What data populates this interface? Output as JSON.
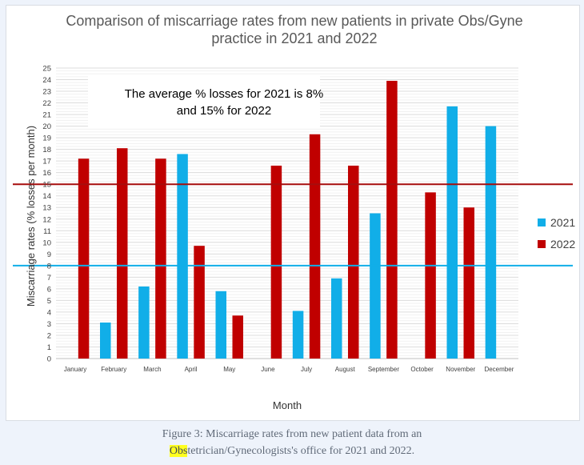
{
  "chart_data": {
    "type": "bar",
    "title": "Comparison of miscarriage rates from new patients in private Obs/Gyne practice in 2021 and 2022",
    "title_lines": [
      "Comparison of miscarriage rates from new patients in private Obs/Gyne",
      "practice in 2021 and 2022"
    ],
    "xlabel": "Month",
    "ylabel": "Miscarriage rates (% losses per month)",
    "ylim": [
      0,
      25
    ],
    "y_ticks": [
      0,
      1,
      2,
      3,
      4,
      5,
      6,
      7,
      8,
      9,
      10,
      11,
      12,
      13,
      14,
      15,
      16,
      17,
      18,
      19,
      20,
      21,
      22,
      23,
      24,
      25
    ],
    "grid": true,
    "legend_position": "right",
    "categories": [
      "January",
      "February",
      "March",
      "April",
      "May",
      "June",
      "July",
      "August",
      "September",
      "October",
      "November",
      "December"
    ],
    "series": [
      {
        "name": "2021",
        "color": "#11aee8",
        "values": [
          0,
          3.1,
          6.2,
          17.6,
          5.8,
          0,
          4.1,
          6.9,
          12.5,
          0,
          21.7,
          20.0
        ]
      },
      {
        "name": "2022",
        "color": "#c00000",
        "values": [
          17.2,
          18.1,
          17.2,
          9.7,
          3.7,
          16.6,
          19.3,
          16.6,
          23.9,
          14.3,
          13.0,
          0
        ]
      }
    ],
    "reference_lines": [
      {
        "series": "2021",
        "value": 8,
        "color": "#11aee8"
      },
      {
        "series": "2022",
        "value": 15,
        "color": "#a60d0d"
      }
    ],
    "annotation_lines": [
      "The average % losses for 2021 is 8%",
      "and 15% for 2022"
    ]
  },
  "caption": {
    "before": "Figure 3: Miscarriage rates from new patient data from an",
    "highlight": "Obs",
    "after": "tetrician/Gynecologists's office for 2021 and 2022."
  }
}
